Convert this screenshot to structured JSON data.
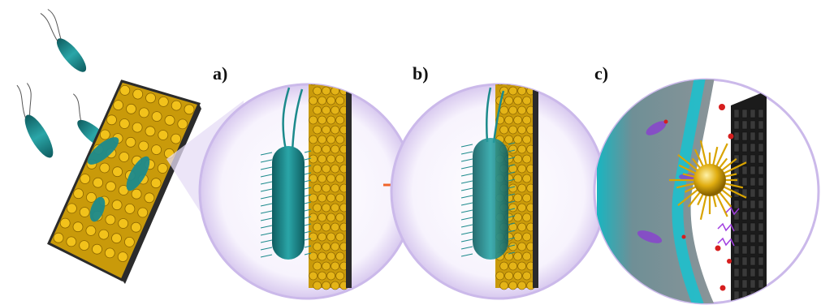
{
  "figure": {
    "panels": [
      {
        "id": "a",
        "label": "a)"
      },
      {
        "id": "b",
        "label": "b)"
      },
      {
        "id": "c",
        "label": "c)"
      }
    ],
    "colors": {
      "bacteria": "#1c8a8c",
      "bacteria_dark": "#0f5d60",
      "nanospikes": "#d9a400",
      "substrate": "#2b2b2b",
      "lens_ring": "#c9b8e6",
      "lens_fill": "#f1ecfa",
      "arrow": "#f0642a",
      "membrane_purple": "#8a3fd1",
      "ros_red": "#d61e1e"
    }
  }
}
